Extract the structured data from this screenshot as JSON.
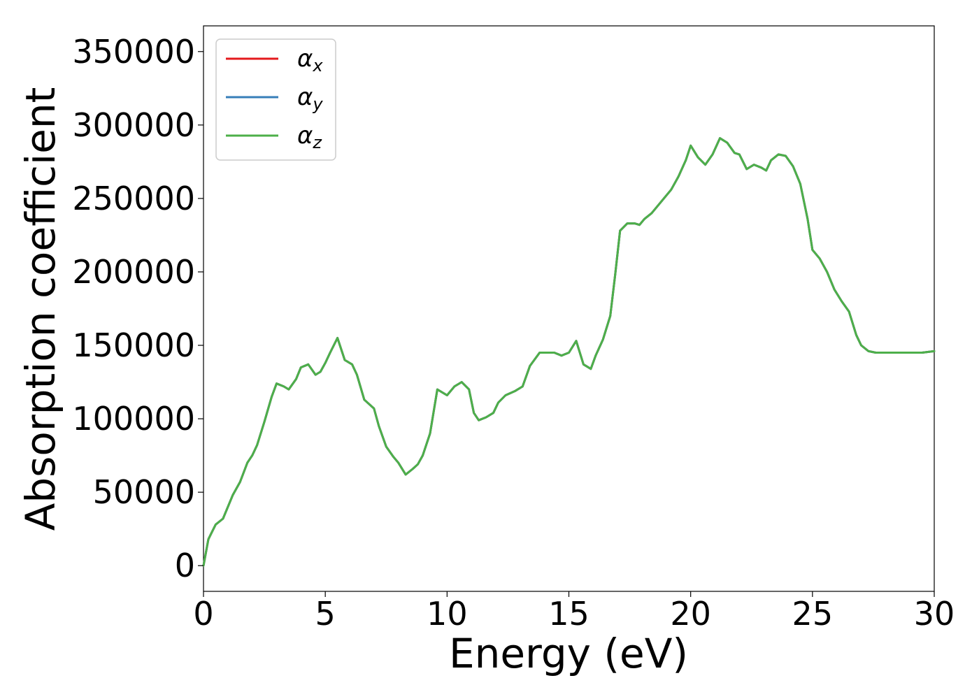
{
  "chart_data": {
    "type": "line",
    "xlabel": "Energy (eV)",
    "ylabel": "Absorption coefficient",
    "xlim": [
      0,
      30
    ],
    "ylim": [
      -17500,
      367500
    ],
    "xticks": [
      0,
      5,
      10,
      15,
      20,
      25,
      30
    ],
    "yticks": [
      0,
      50000,
      100000,
      150000,
      200000,
      250000,
      300000,
      350000
    ],
    "grid": false,
    "legend": {
      "placement": "top-left"
    },
    "series": [
      {
        "name": "x",
        "color": "#e41a1c",
        "x": [
          0,
          0.2,
          0.5,
          0.8,
          1.2,
          1.5,
          1.8,
          2.0,
          2.2,
          2.5,
          2.8,
          3.0,
          3.3,
          3.5,
          3.8,
          4.0,
          4.3,
          4.6,
          4.8,
          5.0,
          5.2,
          5.5,
          5.8,
          6.1,
          6.3,
          6.6,
          7.0,
          7.2,
          7.5,
          7.8,
          8.0,
          8.3,
          8.6,
          8.8,
          9.0,
          9.3,
          9.6,
          10.0,
          10.3,
          10.6,
          10.9,
          11.1,
          11.3,
          11.6,
          11.9,
          12.1,
          12.4,
          12.8,
          13.1,
          13.4,
          13.8,
          14.1,
          14.4,
          14.7,
          15.0,
          15.3,
          15.6,
          15.9,
          16.1,
          16.4,
          16.7,
          16.9,
          17.1,
          17.4,
          17.7,
          17.9,
          18.1,
          18.4,
          18.8,
          19.2,
          19.5,
          19.8,
          20.0,
          20.3,
          20.6,
          20.9,
          21.2,
          21.5,
          21.8,
          22.0,
          22.3,
          22.6,
          22.9,
          23.1,
          23.3,
          23.6,
          23.9,
          24.2,
          24.5,
          24.8,
          25.0,
          25.3,
          25.6,
          25.9,
          26.2,
          26.5,
          26.8,
          27.0,
          27.3,
          27.6,
          28.0,
          28.3,
          28.6,
          28.9,
          29.2,
          29.5,
          30.0
        ],
        "y": [
          0,
          18000,
          28000,
          32000,
          48000,
          57000,
          70000,
          75000,
          82000,
          98000,
          115000,
          124000,
          122000,
          120000,
          127000,
          135000,
          137000,
          130000,
          132000,
          138000,
          145000,
          155000,
          140000,
          137000,
          130000,
          113000,
          107000,
          95000,
          81000,
          74000,
          70000,
          62000,
          66000,
          69000,
          75000,
          90000,
          120000,
          116000,
          122000,
          125000,
          120000,
          104000,
          99000,
          101000,
          104000,
          111000,
          116000,
          119000,
          122000,
          136000,
          145000,
          145000,
          145000,
          143000,
          145000,
          153000,
          137000,
          134000,
          143000,
          154000,
          170000,
          198000,
          228000,
          233000,
          233000,
          232000,
          236000,
          240000,
          248000,
          256000,
          265000,
          276000,
          286000,
          278000,
          273000,
          280000,
          291000,
          288000,
          281000,
          280000,
          270000,
          273000,
          271000,
          269000,
          276000,
          280000,
          279000,
          272000,
          260000,
          236000,
          215000,
          209000,
          200000,
          188000,
          180000,
          173000,
          157000,
          150000,
          146000,
          145000,
          145000,
          145000,
          145000,
          145000,
          145000,
          145000,
          146000
        ]
      },
      {
        "name": "y",
        "color": "#377eb8",
        "x": [
          0,
          0.2,
          0.5,
          0.8,
          1.2,
          1.5,
          1.8,
          2.0,
          2.2,
          2.5,
          2.8,
          3.0,
          3.3,
          3.5,
          3.8,
          4.0,
          4.3,
          4.6,
          4.8,
          5.0,
          5.2,
          5.5,
          5.8,
          6.1,
          6.3,
          6.6,
          7.0,
          7.2,
          7.5,
          7.8,
          8.0,
          8.3,
          8.6,
          8.8,
          9.0,
          9.3,
          9.6,
          10.0,
          10.3,
          10.6,
          10.9,
          11.1,
          11.3,
          11.6,
          11.9,
          12.1,
          12.4,
          12.8,
          13.1,
          13.4,
          13.8,
          14.1,
          14.4,
          14.7,
          15.0,
          15.3,
          15.6,
          15.9,
          16.1,
          16.4,
          16.7,
          16.9,
          17.1,
          17.4,
          17.7,
          17.9,
          18.1,
          18.4,
          18.8,
          19.2,
          19.5,
          19.8,
          20.0,
          20.3,
          20.6,
          20.9,
          21.2,
          21.5,
          21.8,
          22.0,
          22.3,
          22.6,
          22.9,
          23.1,
          23.3,
          23.6,
          23.9,
          24.2,
          24.5,
          24.8,
          25.0,
          25.3,
          25.6,
          25.9,
          26.2,
          26.5,
          26.8,
          27.0,
          27.3,
          27.6,
          28.0,
          28.3,
          28.6,
          28.9,
          29.2,
          29.5,
          30.0
        ],
        "y": [
          0,
          18000,
          28000,
          32000,
          48000,
          57000,
          70000,
          75000,
          82000,
          98000,
          115000,
          124000,
          122000,
          120000,
          127000,
          135000,
          137000,
          130000,
          132000,
          138000,
          145000,
          155000,
          140000,
          137000,
          130000,
          113000,
          107000,
          95000,
          81000,
          74000,
          70000,
          62000,
          66000,
          69000,
          75000,
          90000,
          120000,
          116000,
          122000,
          125000,
          120000,
          104000,
          99000,
          101000,
          104000,
          111000,
          116000,
          119000,
          122000,
          136000,
          145000,
          145000,
          145000,
          143000,
          145000,
          153000,
          137000,
          134000,
          143000,
          154000,
          170000,
          198000,
          228000,
          233000,
          233000,
          232000,
          236000,
          240000,
          248000,
          256000,
          265000,
          276000,
          286000,
          278000,
          273000,
          280000,
          291000,
          288000,
          281000,
          280000,
          270000,
          273000,
          271000,
          269000,
          276000,
          280000,
          279000,
          272000,
          260000,
          236000,
          215000,
          209000,
          200000,
          188000,
          180000,
          173000,
          157000,
          150000,
          146000,
          145000,
          145000,
          145000,
          145000,
          145000,
          145000,
          145000,
          146000
        ]
      },
      {
        "name": "z",
        "color": "#4daf4a",
        "x": [
          0,
          0.2,
          0.5,
          0.8,
          1.2,
          1.5,
          1.8,
          2.0,
          2.2,
          2.5,
          2.8,
          3.0,
          3.3,
          3.5,
          3.8,
          4.0,
          4.3,
          4.6,
          4.8,
          5.0,
          5.2,
          5.5,
          5.8,
          6.1,
          6.3,
          6.6,
          7.0,
          7.2,
          7.5,
          7.8,
          8.0,
          8.3,
          8.6,
          8.8,
          9.0,
          9.3,
          9.6,
          10.0,
          10.3,
          10.6,
          10.9,
          11.1,
          11.3,
          11.6,
          11.9,
          12.1,
          12.4,
          12.8,
          13.1,
          13.4,
          13.8,
          14.1,
          14.4,
          14.7,
          15.0,
          15.3,
          15.6,
          15.9,
          16.1,
          16.4,
          16.7,
          16.9,
          17.1,
          17.4,
          17.7,
          17.9,
          18.1,
          18.4,
          18.8,
          19.2,
          19.5,
          19.8,
          20.0,
          20.3,
          20.6,
          20.9,
          21.2,
          21.5,
          21.8,
          22.0,
          22.3,
          22.6,
          22.9,
          23.1,
          23.3,
          23.6,
          23.9,
          24.2,
          24.5,
          24.8,
          25.0,
          25.3,
          25.6,
          25.9,
          26.2,
          26.5,
          26.8,
          27.0,
          27.3,
          27.6,
          28.0,
          28.3,
          28.6,
          28.9,
          29.2,
          29.5,
          30.0
        ],
        "y": [
          0,
          18000,
          28000,
          32000,
          48000,
          57000,
          70000,
          75000,
          82000,
          98000,
          115000,
          124000,
          122000,
          120000,
          127000,
          135000,
          137000,
          130000,
          132000,
          138000,
          145000,
          155000,
          140000,
          137000,
          130000,
          113000,
          107000,
          95000,
          81000,
          74000,
          70000,
          62000,
          66000,
          69000,
          75000,
          90000,
          120000,
          116000,
          122000,
          125000,
          120000,
          104000,
          99000,
          101000,
          104000,
          111000,
          116000,
          119000,
          122000,
          136000,
          145000,
          145000,
          145000,
          143000,
          145000,
          153000,
          137000,
          134000,
          143000,
          154000,
          170000,
          198000,
          228000,
          233000,
          233000,
          232000,
          236000,
          240000,
          248000,
          256000,
          265000,
          276000,
          286000,
          278000,
          273000,
          280000,
          291000,
          288000,
          281000,
          280000,
          270000,
          273000,
          271000,
          269000,
          276000,
          280000,
          279000,
          272000,
          260000,
          236000,
          215000,
          209000,
          200000,
          188000,
          180000,
          173000,
          157000,
          150000,
          146000,
          145000,
          145000,
          145000,
          145000,
          145000,
          145000,
          145000,
          146000
        ]
      }
    ]
  }
}
